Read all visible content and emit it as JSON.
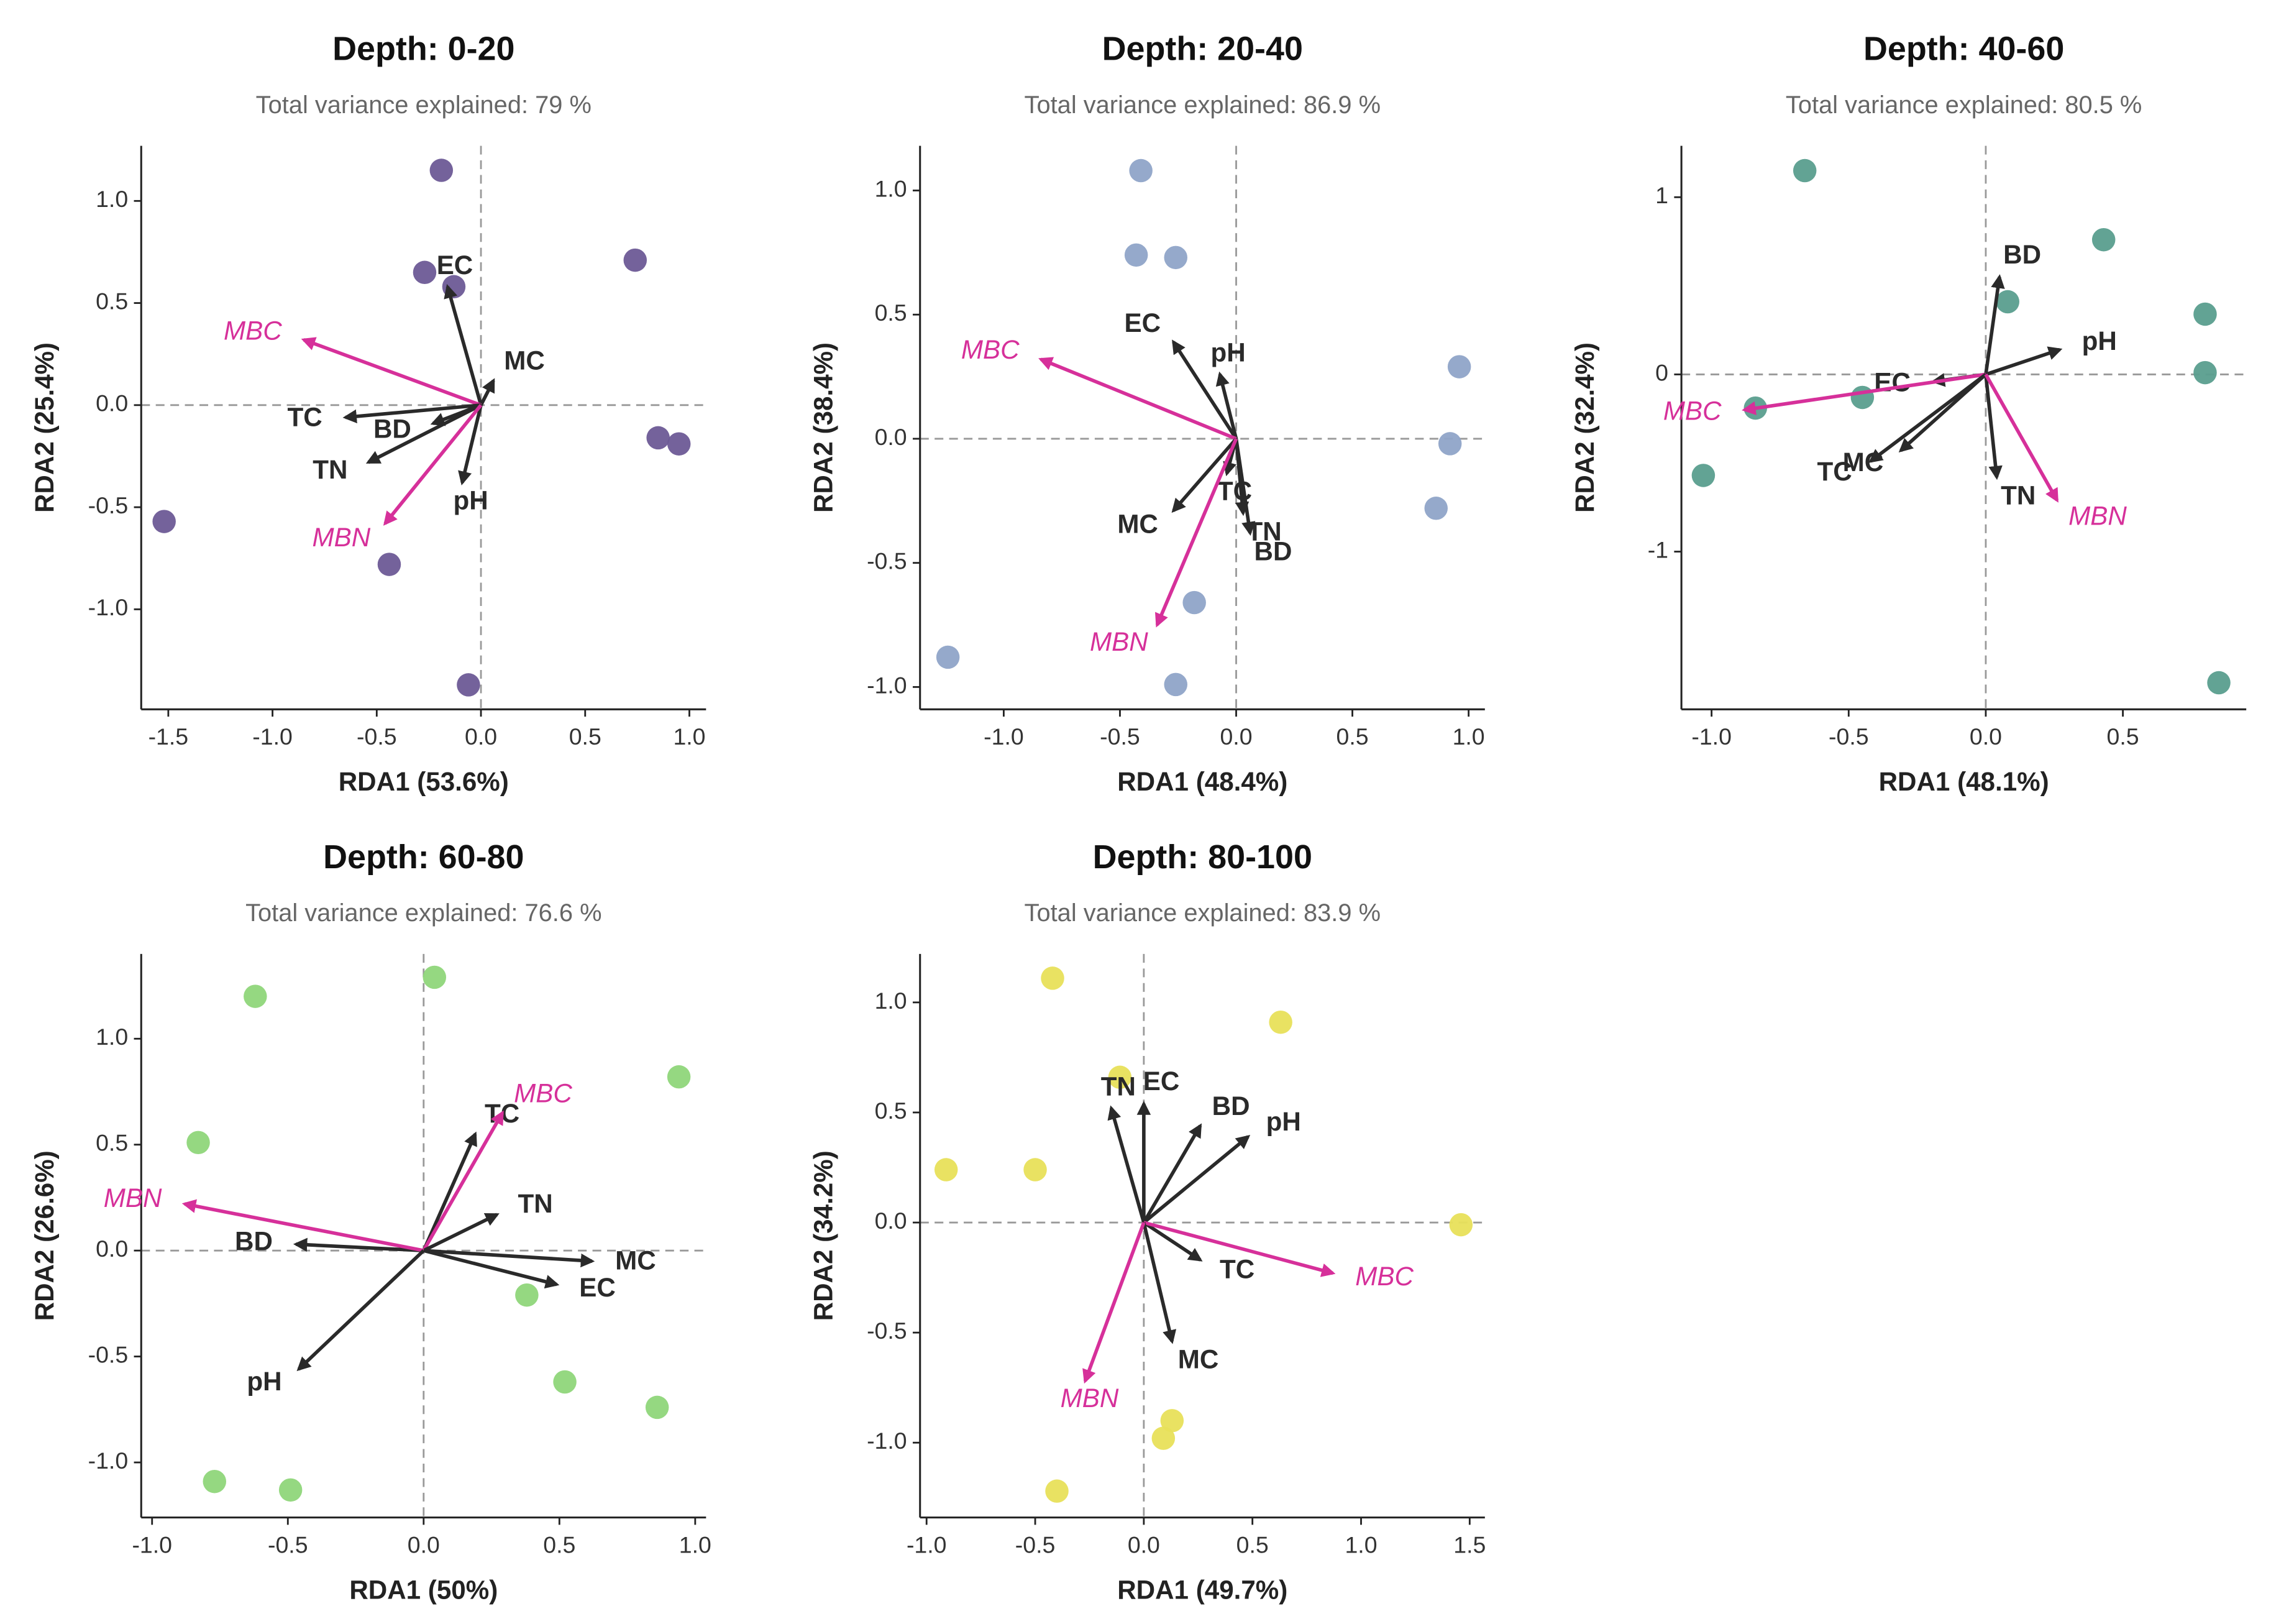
{
  "chart_data": [
    {
      "type": "scatter",
      "title": "Depth: 0-20",
      "subtitle": "Total variance explained: 79 %",
      "xlabel": "RDA1 (53.6%)",
      "ylabel": "RDA2 (25.4%)",
      "xlim": [
        -1.63,
        1.08
      ],
      "ylim": [
        -1.49,
        1.27
      ],
      "xticks": [
        -1.5,
        {
          "value": -1,
          "label": "-1.0"
        },
        -0.5,
        {
          "value": 0,
          "label": "0.0"
        },
        0.5,
        {
          "value": 1,
          "label": "1.0"
        }
      ],
      "yticks": [
        {
          "value": -1,
          "label": "-1.0"
        },
        -0.5,
        {
          "value": 0,
          "label": "0.0"
        },
        0.5,
        {
          "value": 1,
          "label": "1.0"
        }
      ],
      "color": "#6d5a96",
      "x": [
        -0.19,
        -0.27,
        -0.13,
        0.74,
        0.85,
        0.95,
        -1.52,
        -0.44,
        -0.06
      ],
      "y": [
        1.15,
        0.65,
        0.58,
        0.71,
        -0.16,
        -0.19,
        -0.57,
        -0.78,
        -1.37
      ],
      "vectors": [
        {
          "name": "EC",
          "x": -0.16,
          "y": 0.58,
          "color": "#2a2a2a"
        },
        {
          "name": "MC",
          "x": 0.06,
          "y": 0.12,
          "color": "#2a2a2a"
        },
        {
          "name": "MBC",
          "x": -0.85,
          "y": 0.32,
          "color": "#d6309a",
          "italic": true
        },
        {
          "name": "TC",
          "x": -0.65,
          "y": -0.06,
          "color": "#2a2a2a"
        },
        {
          "name": "BD",
          "x": -0.23,
          "y": -0.09,
          "color": "#2a2a2a"
        },
        {
          "name": "TN",
          "x": -0.54,
          "y": -0.28,
          "color": "#2a2a2a"
        },
        {
          "name": "pH",
          "x": -0.09,
          "y": -0.38,
          "color": "#2a2a2a"
        },
        {
          "name": "MBN",
          "x": -0.46,
          "y": -0.58,
          "color": "#d6309a",
          "italic": true
        }
      ]
    },
    {
      "type": "scatter",
      "title": "Depth: 20-40",
      "subtitle": "Total variance explained: 86.9 %",
      "xlabel": "RDA1 (48.4%)",
      "ylabel": "RDA2 (38.4%)",
      "xlim": [
        -1.36,
        1.07
      ],
      "ylim": [
        -1.09,
        1.18
      ],
      "xticks": [
        {
          "value": -1,
          "label": "-1.0"
        },
        -0.5,
        {
          "value": 0,
          "label": "0.0"
        },
        0.5,
        {
          "value": 1,
          "label": "1.0"
        }
      ],
      "yticks": [
        {
          "value": -1,
          "label": "-1.0"
        },
        -0.5,
        {
          "value": 0,
          "label": "0.0"
        },
        0.5,
        {
          "value": 1,
          "label": "1.0"
        }
      ],
      "color": "#8fa4c8",
      "x": [
        -0.41,
        -0.43,
        -0.26,
        0.96,
        0.92,
        0.86,
        -0.18,
        -1.24,
        -0.26
      ],
      "y": [
        1.08,
        0.74,
        0.73,
        0.29,
        -0.02,
        -0.28,
        -0.66,
        -0.88,
        -0.99
      ],
      "vectors": [
        {
          "name": "EC",
          "x": -0.27,
          "y": 0.39,
          "color": "#2a2a2a"
        },
        {
          "name": "pH",
          "x": -0.07,
          "y": 0.26,
          "color": "#2a2a2a"
        },
        {
          "name": "MBC",
          "x": -0.84,
          "y": 0.32,
          "color": "#d6309a",
          "italic": true
        },
        {
          "name": "TC",
          "x": -0.04,
          "y": -0.14,
          "color": "#2a2a2a"
        },
        {
          "name": "TN",
          "x": 0.03,
          "y": -0.3,
          "color": "#2a2a2a"
        },
        {
          "name": "BD",
          "x": 0.06,
          "y": -0.38,
          "color": "#2a2a2a"
        },
        {
          "name": "MC",
          "x": -0.27,
          "y": -0.29,
          "color": "#2a2a2a"
        },
        {
          "name": "MBN",
          "x": -0.34,
          "y": -0.75,
          "color": "#d6309a",
          "italic": true
        }
      ]
    },
    {
      "type": "scatter",
      "title": "Depth: 40-60",
      "subtitle": "Total variance explained: 80.5 %",
      "xlabel": "RDA1 (48.1%)",
      "ylabel": "RDA2 (32.4%)",
      "xlim": [
        -1.11,
        0.95
      ],
      "ylim": [
        -1.89,
        1.29
      ],
      "xticks": [
        {
          "value": -1,
          "label": "-1.0"
        },
        -0.5,
        {
          "value": 0,
          "label": "0.0"
        },
        0.5
      ],
      "yticks": [
        -1,
        0,
        1
      ],
      "color": "#5a9e8e",
      "x": [
        -0.66,
        0.43,
        0.08,
        0.8,
        0.8,
        -0.84,
        -0.45,
        -1.03,
        0.85
      ],
      "y": [
        1.15,
        0.76,
        0.41,
        0.34,
        0.01,
        -0.19,
        -0.13,
        -0.57,
        -1.74
      ],
      "vectors": [
        {
          "name": "BD",
          "x": 0.05,
          "y": 0.55,
          "color": "#2a2a2a"
        },
        {
          "name": "pH",
          "x": 0.27,
          "y": 0.14,
          "color": "#2a2a2a"
        },
        {
          "name": "EC",
          "x": -0.19,
          "y": -0.04,
          "color": "#2a2a2a"
        },
        {
          "name": "MBC",
          "x": -0.88,
          "y": -0.2,
          "color": "#d6309a",
          "italic": true
        },
        {
          "name": "TC",
          "x": -0.42,
          "y": -0.49,
          "color": "#2a2a2a"
        },
        {
          "name": "MC",
          "x": -0.31,
          "y": -0.43,
          "color": "#2a2a2a"
        },
        {
          "name": "TN",
          "x": 0.04,
          "y": -0.58,
          "color": "#2a2a2a"
        },
        {
          "name": "MBN",
          "x": 0.26,
          "y": -0.71,
          "color": "#d6309a",
          "italic": true
        }
      ]
    },
    {
      "type": "scatter",
      "title": "Depth: 60-80",
      "subtitle": "Total variance explained: 76.6 %",
      "xlabel": "RDA1 (50%)",
      "ylabel": "RDA2 (26.6%)",
      "xlim": [
        -1.04,
        1.04
      ],
      "ylim": [
        -1.26,
        1.4
      ],
      "xticks": [
        {
          "value": -1,
          "label": "-1.0"
        },
        -0.5,
        {
          "value": 0,
          "label": "0.0"
        },
        0.5,
        {
          "value": 1,
          "label": "1.0"
        }
      ],
      "yticks": [
        {
          "value": -1,
          "label": "-1.0"
        },
        -0.5,
        {
          "value": 0,
          "label": "0.0"
        },
        0.5,
        {
          "value": 1,
          "label": "1.0"
        }
      ],
      "color": "#8fd67a",
      "x": [
        -0.62,
        0.04,
        0.94,
        -0.83,
        0.38,
        0.52,
        0.86,
        -0.77,
        -0.49
      ],
      "y": [
        1.2,
        1.29,
        0.82,
        0.51,
        -0.21,
        -0.62,
        -0.74,
        -1.09,
        -1.13
      ],
      "vectors": [
        {
          "name": "TC",
          "x": 0.19,
          "y": 0.55,
          "color": "#2a2a2a"
        },
        {
          "name": "MBC",
          "x": 0.29,
          "y": 0.65,
          "color": "#d6309a",
          "italic": true
        },
        {
          "name": "TN",
          "x": 0.27,
          "y": 0.17,
          "color": "#2a2a2a"
        },
        {
          "name": "MC",
          "x": 0.62,
          "y": -0.05,
          "color": "#2a2a2a"
        },
        {
          "name": "EC",
          "x": 0.49,
          "y": -0.16,
          "color": "#2a2a2a"
        },
        {
          "name": "BD",
          "x": -0.47,
          "y": 0.03,
          "color": "#2a2a2a"
        },
        {
          "name": "MBN",
          "x": -0.88,
          "y": 0.22,
          "color": "#d6309a",
          "italic": true
        },
        {
          "name": "pH",
          "x": -0.46,
          "y": -0.56,
          "color": "#2a2a2a"
        }
      ]
    },
    {
      "type": "scatter",
      "title": "Depth: 80-100",
      "subtitle": "Total variance explained: 83.9 %",
      "xlabel": "RDA1 (49.7%)",
      "ylabel": "RDA2 (34.2%)",
      "xlim": [
        -1.03,
        1.57
      ],
      "ylim": [
        -1.34,
        1.22
      ],
      "xticks": [
        {
          "value": -1,
          "label": "-1.0"
        },
        -0.5,
        {
          "value": 0,
          "label": "0.0"
        },
        0.5,
        {
          "value": 1,
          "label": "1.0"
        },
        1.5
      ],
      "yticks": [
        {
          "value": -1,
          "label": "-1.0"
        },
        -0.5,
        {
          "value": 0,
          "label": "0.0"
        },
        0.5,
        {
          "value": 1,
          "label": "1.0"
        }
      ],
      "color": "#e8e05a",
      "x": [
        -0.42,
        0.63,
        -0.11,
        -0.91,
        -0.5,
        1.46,
        0.13,
        0.09,
        -0.4
      ],
      "y": [
        1.11,
        0.91,
        0.66,
        0.24,
        0.24,
        -0.01,
        -0.9,
        -0.98,
        -1.22
      ],
      "vectors": [
        {
          "name": "EC",
          "x": 0.0,
          "y": 0.54,
          "color": "#2a2a2a"
        },
        {
          "name": "TN",
          "x": -0.15,
          "y": 0.52,
          "color": "#2a2a2a"
        },
        {
          "name": "BD",
          "x": 0.26,
          "y": 0.44,
          "color": "#2a2a2a"
        },
        {
          "name": "pH",
          "x": 0.48,
          "y": 0.39,
          "color": "#2a2a2a"
        },
        {
          "name": "TC",
          "x": 0.26,
          "y": -0.17,
          "color": "#2a2a2a"
        },
        {
          "name": "MBC",
          "x": 0.87,
          "y": -0.23,
          "color": "#d6309a",
          "italic": true
        },
        {
          "name": "MC",
          "x": 0.13,
          "y": -0.54,
          "color": "#2a2a2a"
        },
        {
          "name": "MBN",
          "x": -0.27,
          "y": -0.72,
          "color": "#d6309a",
          "italic": true
        }
      ]
    }
  ]
}
